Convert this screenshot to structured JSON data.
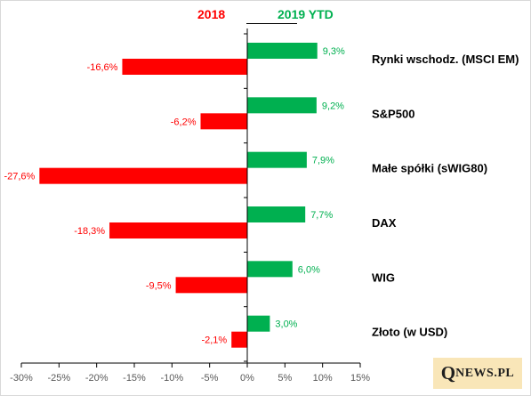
{
  "chart_data": {
    "type": "bar",
    "orientation": "horizontal",
    "categories": [
      "Rynki wschodz. (MSCI EM)",
      "S&P500",
      "Małe spółki (sWIG80)",
      "DAX",
      "WIG",
      "Złoto (w USD)"
    ],
    "series": [
      {
        "name": "2018",
        "color": "#ff0000",
        "values": [
          -16.6,
          -6.2,
          -27.6,
          -18.3,
          -9.5,
          -2.1
        ],
        "value_labels": [
          "-16,6%",
          "-6,2%",
          "-27,6%",
          "-18,3%",
          "-9,5%",
          "-2,1%"
        ]
      },
      {
        "name": "2019 YTD",
        "color": "#00b050",
        "values": [
          9.3,
          9.2,
          7.9,
          7.7,
          6.0,
          3.0
        ],
        "value_labels": [
          "9,3%",
          "9,2%",
          "7,9%",
          "7,7%",
          "6,0%",
          "3,0%"
        ]
      }
    ],
    "xlim": [
      -30,
      15
    ],
    "xticks": [
      -30,
      -25,
      -20,
      -15,
      -10,
      -5,
      0,
      5,
      10,
      15
    ],
    "xtick_labels": [
      "-30%",
      "-25%",
      "-20%",
      "-15%",
      "-10%",
      "-5%",
      "0%",
      "5%",
      "10%",
      "15%"
    ],
    "grid": false,
    "legend_position": "top-center"
  },
  "legend": {
    "label_2018": "2018",
    "label_2019": "2019 YTD"
  },
  "brand": {
    "first": "Q",
    "rest": "NEWS.PL"
  },
  "colors": {
    "negative": "#ff0000",
    "positive": "#00b050",
    "axis": "#000000",
    "tick_text": "#595959",
    "brand_bg": "#f9e6b8"
  }
}
